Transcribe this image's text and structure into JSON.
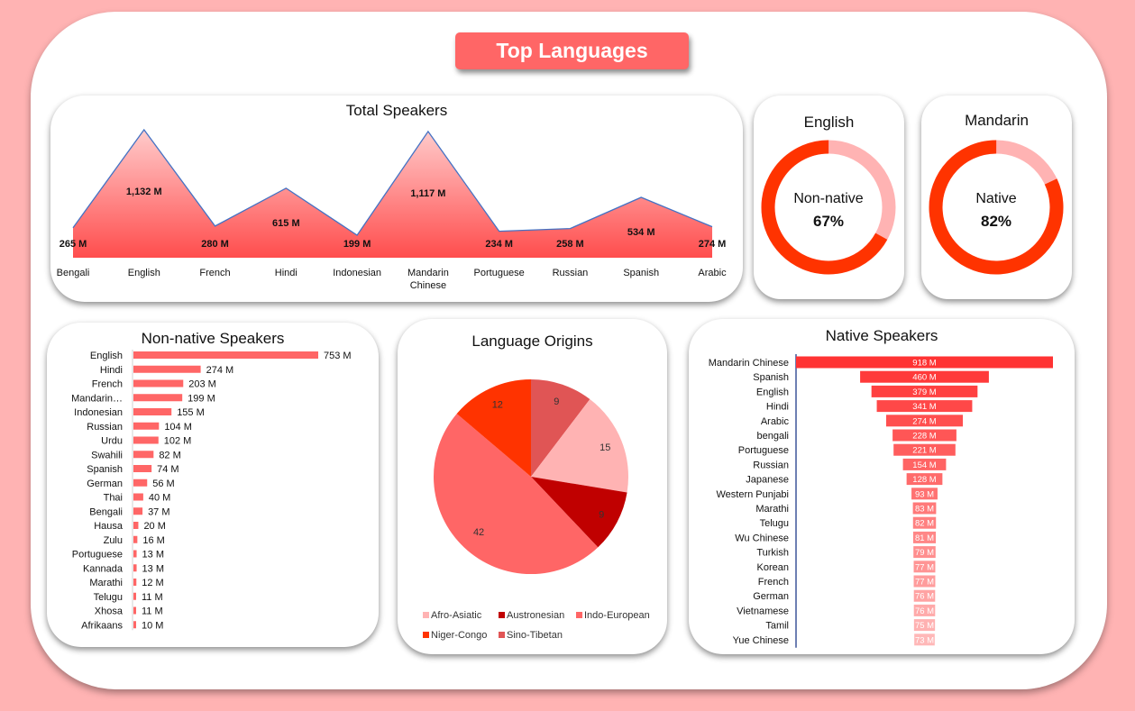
{
  "dashboard": {
    "title": "Top Languages"
  },
  "colors": {
    "primary": "#ff3300",
    "light": "#ffb3b3",
    "accent": "#ff6666",
    "line": "#4472c4"
  },
  "total_speakers": {
    "title": "Total Speakers",
    "labels": [
      "265 M",
      "1,132 M",
      "280 M",
      "615 M",
      "199 M",
      "1,117 M",
      "234 M",
      "258 M",
      "534 M",
      "274 M"
    ],
    "categories": [
      "Bengali",
      "English",
      "French",
      "Hindi",
      "Indonesian",
      [
        "Mandarin",
        "Chinese"
      ],
      "Portuguese",
      "Russian",
      "Spanish",
      "Arabic"
    ]
  },
  "english_donut": {
    "title": "English",
    "label": "Non-native",
    "percent_text": "67%",
    "percent": 67
  },
  "mandarin_donut": {
    "title": "Mandarin",
    "label": "Native",
    "percent_text": "82%",
    "percent": 82
  },
  "non_native": {
    "title": "Non-native Speakers",
    "labels": [
      "753 M",
      "274 M",
      "203 M",
      "199 M",
      "155 M",
      "104 M",
      "102 M",
      "82 M",
      "74 M",
      "56 M",
      "40 M",
      "37 M",
      "20 M",
      "16 M",
      "13 M",
      "13 M",
      "12 M",
      "11 M",
      "11 M",
      "10 M"
    ],
    "categories": [
      "English",
      "Hindi",
      "French",
      "Mandarin…",
      "Indonesian",
      "Russian",
      "Urdu",
      "Swahili",
      "Spanish",
      "German",
      "Thai",
      "Bengali",
      "Hausa",
      "Zulu",
      "Portuguese",
      "Kannada",
      "Marathi",
      "Telugu",
      "Xhosa",
      "Afrikaans"
    ]
  },
  "origins": {
    "title": "Language Origins",
    "labels": [
      "15",
      "9",
      "42",
      "12",
      "9"
    ],
    "legend": [
      "Afro-Asiatic",
      "Austronesian",
      "Indo-European",
      "Niger-Congo",
      "Sino-Tibetan"
    ]
  },
  "native": {
    "title": "Native Speakers",
    "labels": [
      "918 M",
      "460 M",
      "379 M",
      "341 M",
      "274 M",
      "228 M",
      "221 M",
      "154 M",
      "128 M",
      "93 M",
      "83 M",
      "82 M",
      "81 M",
      "79 M",
      "77 M",
      "77 M",
      "76 M",
      "76 M",
      "75 M",
      "73 M"
    ],
    "categories": [
      "Mandarin Chinese",
      "Spanish",
      "English",
      "Hindi",
      "Arabic",
      "bengali",
      "Portuguese",
      "Russian",
      "Japanese",
      "Western Punjabi",
      "Marathi",
      "Telugu",
      "Wu Chinese",
      "Turkish",
      "Korean",
      "French",
      "German",
      "Vietnamese",
      "Tamil",
      "Yue Chinese"
    ]
  },
  "chart_data": [
    {
      "type": "area",
      "title": "Total Speakers",
      "categories": [
        "Bengali",
        "English",
        "French",
        "Hindi",
        "Indonesian",
        "Mandarin Chinese",
        "Portuguese",
        "Russian",
        "Spanish",
        "Arabic"
      ],
      "values": [
        265,
        1132,
        280,
        615,
        199,
        1117,
        234,
        258,
        534,
        274
      ],
      "unit": "M"
    },
    {
      "type": "pie",
      "title": "English",
      "categories": [
        "Non-native",
        "Native"
      ],
      "values": [
        67,
        33
      ]
    },
    {
      "type": "pie",
      "title": "Mandarin",
      "categories": [
        "Native",
        "Non-native"
      ],
      "values": [
        82,
        18
      ]
    },
    {
      "type": "bar",
      "title": "Non-native Speakers",
      "categories": [
        "English",
        "Hindi",
        "French",
        "Mandarin…",
        "Indonesian",
        "Russian",
        "Urdu",
        "Swahili",
        "Spanish",
        "German",
        "Thai",
        "Bengali",
        "Hausa",
        "Zulu",
        "Portuguese",
        "Kannada",
        "Marathi",
        "Telugu",
        "Xhosa",
        "Afrikaans"
      ],
      "values": [
        753,
        274,
        203,
        199,
        155,
        104,
        102,
        82,
        74,
        56,
        40,
        37,
        20,
        16,
        13,
        13,
        12,
        11,
        11,
        10
      ],
      "unit": "M"
    },
    {
      "type": "pie",
      "title": "Language Origins",
      "categories": [
        "Afro-Asiatic",
        "Austronesian",
        "Indo-European",
        "Niger-Congo",
        "Sino-Tibetan"
      ],
      "values": [
        15,
        9,
        42,
        12,
        9
      ],
      "colors": [
        "#ffb3b3",
        "#c00000",
        "#ff6666",
        "#ff3300",
        "#e05555"
      ]
    },
    {
      "type": "bar",
      "title": "Native Speakers",
      "categories": [
        "Mandarin Chinese",
        "Spanish",
        "English",
        "Hindi",
        "Arabic",
        "bengali",
        "Portuguese",
        "Russian",
        "Japanese",
        "Western Punjabi",
        "Marathi",
        "Telugu",
        "Wu Chinese",
        "Turkish",
        "Korean",
        "French",
        "German",
        "Vietnamese",
        "Tamil",
        "Yue Chinese"
      ],
      "values": [
        918,
        460,
        379,
        341,
        274,
        228,
        221,
        154,
        128,
        93,
        83,
        82,
        81,
        79,
        77,
        77,
        76,
        76,
        75,
        73
      ],
      "unit": "M"
    }
  ]
}
